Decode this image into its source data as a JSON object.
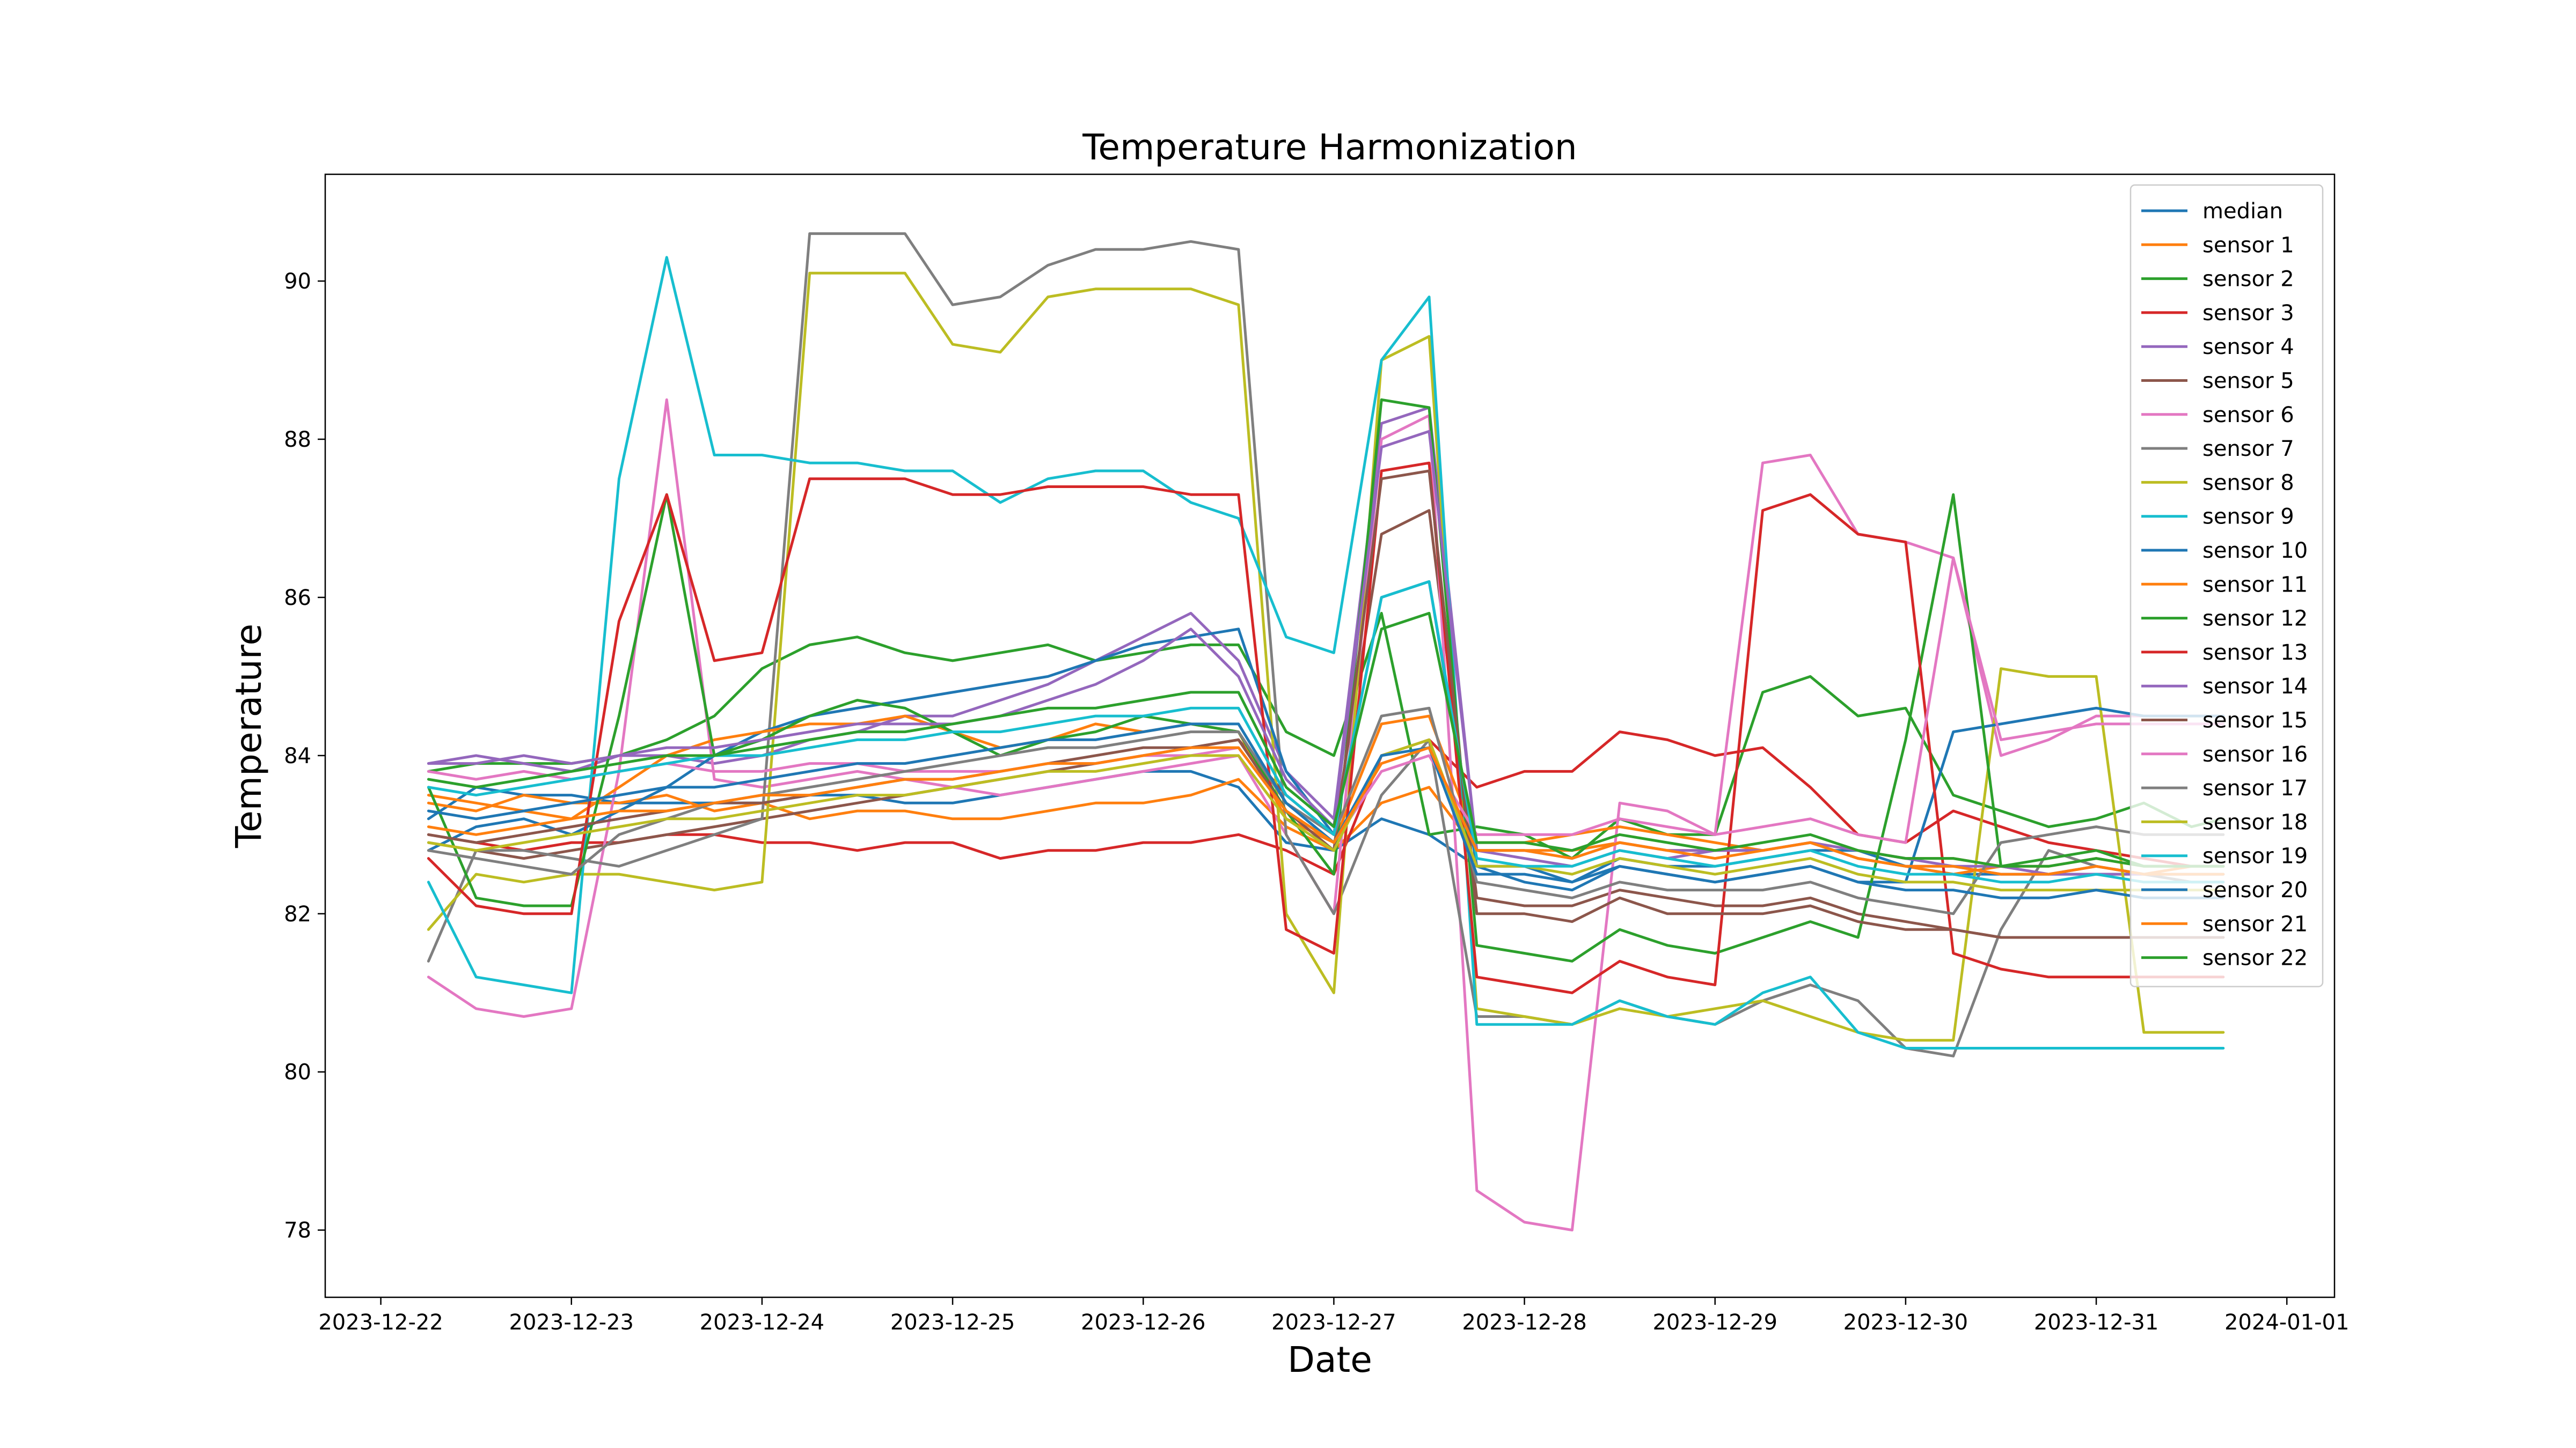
{
  "chart_data": {
    "type": "line",
    "title": "Temperature Harmonization",
    "xlabel": "Date",
    "ylabel": "Temperature",
    "xlim": [
      "2023-12-21T17:00",
      "2024-01-01T06:00"
    ],
    "ylim": [
      77.15,
      91.35
    ],
    "x_ticks": [
      "2023-12-22",
      "2023-12-23",
      "2023-12-24",
      "2023-12-25",
      "2023-12-26",
      "2023-12-27",
      "2023-12-28",
      "2023-12-29",
      "2023-12-30",
      "2023-12-31",
      "2024-01-01"
    ],
    "y_ticks": [
      "78",
      "80",
      "82",
      "84",
      "86",
      "88",
      "90"
    ],
    "grid": false,
    "legend_position": "upper right",
    "series_x": [
      "2023-12-22T06:00",
      "2023-12-22T12:00",
      "2023-12-22T18:00",
      "2023-12-23T00:00",
      "2023-12-23T06:00",
      "2023-12-23T12:00",
      "2023-12-23T18:00",
      "2023-12-24T00:00",
      "2023-12-24T06:00",
      "2023-12-24T12:00",
      "2023-12-24T18:00",
      "2023-12-25T00:00",
      "2023-12-25T06:00",
      "2023-12-25T12:00",
      "2023-12-25T18:00",
      "2023-12-26T00:00",
      "2023-12-26T06:00",
      "2023-12-26T12:00",
      "2023-12-26T18:00",
      "2023-12-27T00:00",
      "2023-12-27T06:00",
      "2023-12-27T12:00",
      "2023-12-27T18:00",
      "2023-12-28T00:00",
      "2023-12-28T06:00",
      "2023-12-28T12:00",
      "2023-12-28T18:00",
      "2023-12-29T00:00",
      "2023-12-29T06:00",
      "2023-12-29T12:00",
      "2023-12-29T18:00",
      "2023-12-30T00:00",
      "2023-12-30T06:00",
      "2023-12-30T12:00",
      "2023-12-30T18:00",
      "2023-12-31T00:00",
      "2023-12-31T06:00",
      "2023-12-31T12:00",
      "2023-12-31T16:00"
    ],
    "series": [
      {
        "name": "median",
        "color": "#1f77b4",
        "values": [
          83.2,
          83.6,
          83.5,
          83.5,
          83.4,
          83.4,
          83.4,
          83.4,
          83.5,
          83.5,
          83.4,
          83.4,
          83.5,
          83.6,
          83.7,
          83.8,
          83.8,
          83.6,
          82.9,
          82.8,
          83.2,
          83.0,
          82.6,
          82.6,
          82.4,
          82.7,
          82.6,
          82.6,
          82.7,
          82.8,
          82.8,
          82.6,
          82.5,
          82.5,
          82.5,
          82.5,
          82.5,
          82.5,
          82.5
        ]
      },
      {
        "name": "sensor 1",
        "color": "#ff7f0e",
        "values": [
          83.4,
          83.3,
          83.5,
          83.4,
          83.4,
          83.5,
          83.3,
          83.4,
          83.2,
          83.3,
          83.3,
          83.2,
          83.2,
          83.3,
          83.4,
          83.4,
          83.5,
          83.7,
          83.1,
          82.8,
          83.4,
          83.6,
          82.8,
          82.8,
          82.8,
          82.9,
          82.8,
          82.8,
          82.8,
          82.9,
          82.7,
          82.6,
          82.5,
          82.6,
          82.5,
          82.6,
          82.5,
          82.6,
          82.6
        ]
      },
      {
        "name": "sensor 2",
        "color": "#2ca02c",
        "values": [
          83.8,
          83.9,
          83.9,
          83.9,
          84.0,
          84.2,
          84.5,
          85.1,
          85.4,
          85.5,
          85.3,
          85.2,
          85.3,
          85.4,
          85.2,
          85.3,
          85.4,
          85.4,
          84.3,
          84.0,
          85.8,
          83.0,
          83.1,
          83.0,
          82.7,
          83.2,
          83.0,
          83.0,
          84.8,
          85.0,
          84.5,
          84.6,
          83.5,
          83.3,
          83.1,
          83.2,
          83.4,
          83.1,
          83.2
        ]
      },
      {
        "name": "sensor 3",
        "color": "#d62728",
        "values": [
          83.0,
          82.9,
          82.8,
          82.9,
          82.9,
          83.0,
          83.0,
          82.9,
          82.9,
          82.8,
          82.9,
          82.9,
          82.7,
          82.8,
          82.8,
          82.9,
          82.9,
          83.0,
          82.8,
          82.5,
          84.0,
          84.2,
          83.6,
          83.8,
          83.8,
          84.3,
          84.2,
          84.0,
          84.1,
          83.6,
          83.0,
          82.9,
          83.3,
          83.1,
          82.9,
          82.8,
          82.7,
          82.6,
          82.6
        ]
      },
      {
        "name": "sensor 4",
        "color": "#9467bd",
        "values": [
          83.9,
          84.0,
          83.9,
          83.8,
          84.0,
          84.0,
          83.9,
          84.0,
          84.2,
          84.3,
          84.5,
          84.5,
          84.7,
          84.9,
          85.2,
          85.5,
          85.8,
          85.2,
          83.8,
          83.2,
          88.2,
          88.4,
          82.8,
          82.7,
          82.6,
          82.8,
          82.7,
          82.8,
          82.8,
          82.9,
          82.7,
          82.6,
          82.6,
          82.5,
          82.5,
          82.5,
          82.5,
          82.5,
          82.5
        ]
      },
      {
        "name": "sensor 5",
        "color": "#8c564b",
        "values": [
          82.9,
          82.8,
          82.7,
          82.8,
          82.9,
          83.0,
          83.1,
          83.2,
          83.3,
          83.4,
          83.5,
          83.6,
          83.7,
          83.8,
          83.9,
          84.0,
          84.1,
          84.2,
          83.5,
          83.0,
          86.8,
          87.1,
          82.2,
          82.1,
          82.1,
          82.3,
          82.2,
          82.1,
          82.1,
          82.2,
          82.0,
          81.9,
          81.8,
          81.7,
          81.7,
          81.7,
          81.7,
          81.7,
          81.7
        ]
      },
      {
        "name": "sensor 6",
        "color": "#e377c2",
        "values": [
          81.2,
          80.8,
          80.7,
          80.8,
          83.8,
          88.5,
          83.7,
          83.6,
          83.7,
          83.8,
          83.7,
          83.6,
          83.5,
          83.6,
          83.7,
          83.8,
          83.9,
          84.0,
          83.0,
          82.0,
          88.0,
          88.3,
          78.5,
          78.1,
          78.0,
          83.4,
          83.3,
          83.0,
          87.7,
          87.8,
          86.8,
          86.7,
          86.5,
          84.0,
          84.2,
          84.5,
          84.5,
          84.5,
          84.5
        ]
      },
      {
        "name": "sensor 7",
        "color": "#7f7f7f",
        "values": [
          81.4,
          82.8,
          82.8,
          82.7,
          82.6,
          82.8,
          83.0,
          83.2,
          90.6,
          90.6,
          90.6,
          89.7,
          89.8,
          90.2,
          90.4,
          90.4,
          90.5,
          90.4,
          83.0,
          82.0,
          83.5,
          84.2,
          80.7,
          80.7,
          80.6,
          80.9,
          80.7,
          80.6,
          80.9,
          81.1,
          80.9,
          80.3,
          80.2,
          81.8,
          82.8,
          82.6,
          82.5,
          82.4,
          82.4
        ]
      },
      {
        "name": "sensor 8",
        "color": "#bcbd22",
        "values": [
          81.8,
          82.5,
          82.4,
          82.5,
          82.5,
          82.4,
          82.3,
          82.4,
          90.1,
          90.1,
          90.1,
          89.2,
          89.1,
          89.8,
          89.9,
          89.9,
          89.9,
          89.7,
          82.0,
          81.0,
          89.0,
          89.3,
          80.8,
          80.7,
          80.6,
          80.8,
          80.7,
          80.8,
          80.9,
          80.7,
          80.5,
          80.4,
          80.4,
          85.1,
          85.0,
          85.0,
          80.5,
          80.5,
          80.5
        ]
      },
      {
        "name": "sensor 9",
        "color": "#17becf",
        "values": [
          82.4,
          81.2,
          81.1,
          81.0,
          87.5,
          90.3,
          87.8,
          87.8,
          87.7,
          87.7,
          87.6,
          87.6,
          87.2,
          87.5,
          87.6,
          87.6,
          87.2,
          87.0,
          85.5,
          85.3,
          89.0,
          89.8,
          80.6,
          80.6,
          80.6,
          80.9,
          80.7,
          80.6,
          81.0,
          81.2,
          80.5,
          80.3,
          80.3,
          80.3,
          80.3,
          80.3,
          80.3,
          80.3,
          80.3
        ]
      },
      {
        "name": "sensor 10",
        "color": "#1f77b4",
        "values": [
          82.8,
          83.1,
          83.2,
          83.0,
          83.3,
          83.6,
          84.0,
          84.3,
          84.5,
          84.6,
          84.7,
          84.8,
          84.9,
          85.0,
          85.2,
          85.4,
          85.5,
          85.6,
          83.8,
          83.0,
          86.0,
          86.2,
          82.6,
          82.4,
          82.3,
          82.6,
          82.5,
          82.4,
          82.5,
          82.6,
          82.4,
          82.4,
          84.3,
          84.4,
          84.5,
          84.6,
          84.5,
          84.5,
          84.5
        ]
      },
      {
        "name": "sensor 11",
        "color": "#ff7f0e",
        "values": [
          83.5,
          83.4,
          83.3,
          83.2,
          83.6,
          84.0,
          84.2,
          84.3,
          84.4,
          84.4,
          84.5,
          84.3,
          84.1,
          84.2,
          84.4,
          84.3,
          84.4,
          84.3,
          83.2,
          82.9,
          84.4,
          84.5,
          82.9,
          82.9,
          83.0,
          83.1,
          83.0,
          82.9,
          82.8,
          82.9,
          82.8,
          82.7,
          82.7,
          82.6,
          82.6,
          82.7,
          82.6,
          82.6,
          82.6
        ]
      },
      {
        "name": "sensor 12",
        "color": "#2ca02c",
        "values": [
          83.6,
          82.2,
          82.1,
          82.1,
          84.5,
          87.3,
          84.0,
          84.2,
          84.5,
          84.7,
          84.6,
          84.3,
          84.0,
          84.2,
          84.3,
          84.5,
          84.4,
          84.3,
          83.3,
          82.5,
          88.5,
          88.4,
          81.6,
          81.5,
          81.4,
          81.8,
          81.6,
          81.5,
          81.7,
          81.9,
          81.7,
          84.2,
          87.3,
          82.6,
          82.7,
          82.8,
          82.6,
          82.6,
          82.6
        ]
      },
      {
        "name": "sensor 13",
        "color": "#d62728",
        "values": [
          82.7,
          82.1,
          82.0,
          82.0,
          85.7,
          87.3,
          85.2,
          85.3,
          87.5,
          87.5,
          87.5,
          87.3,
          87.3,
          87.4,
          87.4,
          87.4,
          87.3,
          87.3,
          81.8,
          81.5,
          87.6,
          87.7,
          81.2,
          81.1,
          81.0,
          81.4,
          81.2,
          81.1,
          87.1,
          87.3,
          86.8,
          86.7,
          81.5,
          81.3,
          81.2,
          81.2,
          81.2,
          81.2,
          81.2
        ]
      },
      {
        "name": "sensor 14",
        "color": "#9467bd",
        "values": [
          83.9,
          83.9,
          84.0,
          83.9,
          84.0,
          84.1,
          84.1,
          84.2,
          84.3,
          84.4,
          84.4,
          84.4,
          84.5,
          84.7,
          84.9,
          85.2,
          85.6,
          85.0,
          83.7,
          83.1,
          87.9,
          88.1,
          82.8,
          82.8,
          82.7,
          82.9,
          82.8,
          82.8,
          82.8,
          82.9,
          82.8,
          82.7,
          82.6,
          82.6,
          82.5,
          82.6,
          82.5,
          82.5,
          82.5
        ]
      },
      {
        "name": "sensor 15",
        "color": "#8c564b",
        "values": [
          83.0,
          82.9,
          83.0,
          83.1,
          83.2,
          83.3,
          83.4,
          83.4,
          83.5,
          83.6,
          83.7,
          83.7,
          83.8,
          83.9,
          84.0,
          84.1,
          84.1,
          84.2,
          83.3,
          82.8,
          87.5,
          87.6,
          82.0,
          82.0,
          81.9,
          82.2,
          82.0,
          82.0,
          82.0,
          82.1,
          81.9,
          81.8,
          81.8,
          81.7,
          81.7,
          81.7,
          81.7,
          81.7,
          81.7
        ]
      },
      {
        "name": "sensor 16",
        "color": "#e377c2",
        "values": [
          83.8,
          83.7,
          83.8,
          83.7,
          83.8,
          83.9,
          83.8,
          83.8,
          83.9,
          83.9,
          83.8,
          83.8,
          83.8,
          83.9,
          83.9,
          84.0,
          84.0,
          84.1,
          83.3,
          82.9,
          83.8,
          84.0,
          83.0,
          83.0,
          83.0,
          83.2,
          83.1,
          83.0,
          83.1,
          83.2,
          83.0,
          82.9,
          86.5,
          84.2,
          84.3,
          84.4,
          84.4,
          84.4,
          84.4
        ]
      },
      {
        "name": "sensor 17",
        "color": "#7f7f7f",
        "values": [
          82.8,
          82.7,
          82.6,
          82.5,
          83.0,
          83.2,
          83.4,
          83.5,
          83.6,
          83.7,
          83.8,
          83.9,
          84.0,
          84.1,
          84.1,
          84.2,
          84.3,
          84.3,
          83.4,
          83.0,
          84.5,
          84.6,
          82.4,
          82.3,
          82.2,
          82.4,
          82.3,
          82.3,
          82.3,
          82.4,
          82.2,
          82.1,
          82.0,
          82.9,
          83.0,
          83.1,
          83.0,
          83.0,
          83.0
        ]
      },
      {
        "name": "sensor 18",
        "color": "#bcbd22",
        "values": [
          82.9,
          82.8,
          82.9,
          83.0,
          83.1,
          83.2,
          83.2,
          83.3,
          83.4,
          83.5,
          83.5,
          83.6,
          83.7,
          83.8,
          83.8,
          83.9,
          84.0,
          84.0,
          83.2,
          82.8,
          84.0,
          84.2,
          82.6,
          82.6,
          82.5,
          82.7,
          82.6,
          82.5,
          82.6,
          82.7,
          82.5,
          82.4,
          82.4,
          82.3,
          82.3,
          82.3,
          82.3,
          82.3,
          82.3
        ]
      },
      {
        "name": "sensor 19",
        "color": "#17becf",
        "values": [
          83.6,
          83.5,
          83.6,
          83.7,
          83.8,
          83.9,
          84.0,
          84.0,
          84.1,
          84.2,
          84.2,
          84.3,
          84.3,
          84.4,
          84.5,
          84.5,
          84.6,
          84.6,
          83.5,
          83.0,
          86.0,
          86.2,
          82.7,
          82.6,
          82.6,
          82.8,
          82.7,
          82.6,
          82.7,
          82.8,
          82.6,
          82.5,
          82.5,
          82.4,
          82.4,
          82.5,
          82.4,
          82.4,
          82.4
        ]
      },
      {
        "name": "sensor 20",
        "color": "#1f77b4",
        "values": [
          83.3,
          83.2,
          83.3,
          83.4,
          83.5,
          83.6,
          83.6,
          83.7,
          83.8,
          83.9,
          83.9,
          84.0,
          84.1,
          84.2,
          84.2,
          84.3,
          84.4,
          84.4,
          83.4,
          82.9,
          84.0,
          84.1,
          82.5,
          82.5,
          82.4,
          82.6,
          82.5,
          82.4,
          82.5,
          82.6,
          82.4,
          82.3,
          82.3,
          82.2,
          82.2,
          82.3,
          82.2,
          82.2,
          82.2
        ]
      },
      {
        "name": "sensor 21",
        "color": "#ff7f0e",
        "values": [
          83.1,
          83.0,
          83.1,
          83.2,
          83.3,
          83.3,
          83.4,
          83.5,
          83.5,
          83.6,
          83.7,
          83.7,
          83.8,
          83.9,
          83.9,
          84.0,
          84.1,
          84.1,
          83.3,
          82.9,
          83.9,
          84.1,
          82.8,
          82.8,
          82.7,
          82.9,
          82.8,
          82.7,
          82.8,
          82.9,
          82.7,
          82.6,
          82.6,
          82.5,
          82.5,
          82.6,
          82.5,
          82.5,
          82.5
        ]
      },
      {
        "name": "sensor 22",
        "color": "#2ca02c",
        "values": [
          83.7,
          83.6,
          83.7,
          83.8,
          83.9,
          84.0,
          84.0,
          84.1,
          84.2,
          84.3,
          84.3,
          84.4,
          84.5,
          84.6,
          84.6,
          84.7,
          84.8,
          84.8,
          83.6,
          83.1,
          85.6,
          85.8,
          82.9,
          82.9,
          82.8,
          83.0,
          82.9,
          82.8,
          82.9,
          83.0,
          82.8,
          82.7,
          82.7,
          82.6,
          82.6,
          82.7,
          82.6,
          82.6,
          82.6
        ]
      }
    ]
  }
}
